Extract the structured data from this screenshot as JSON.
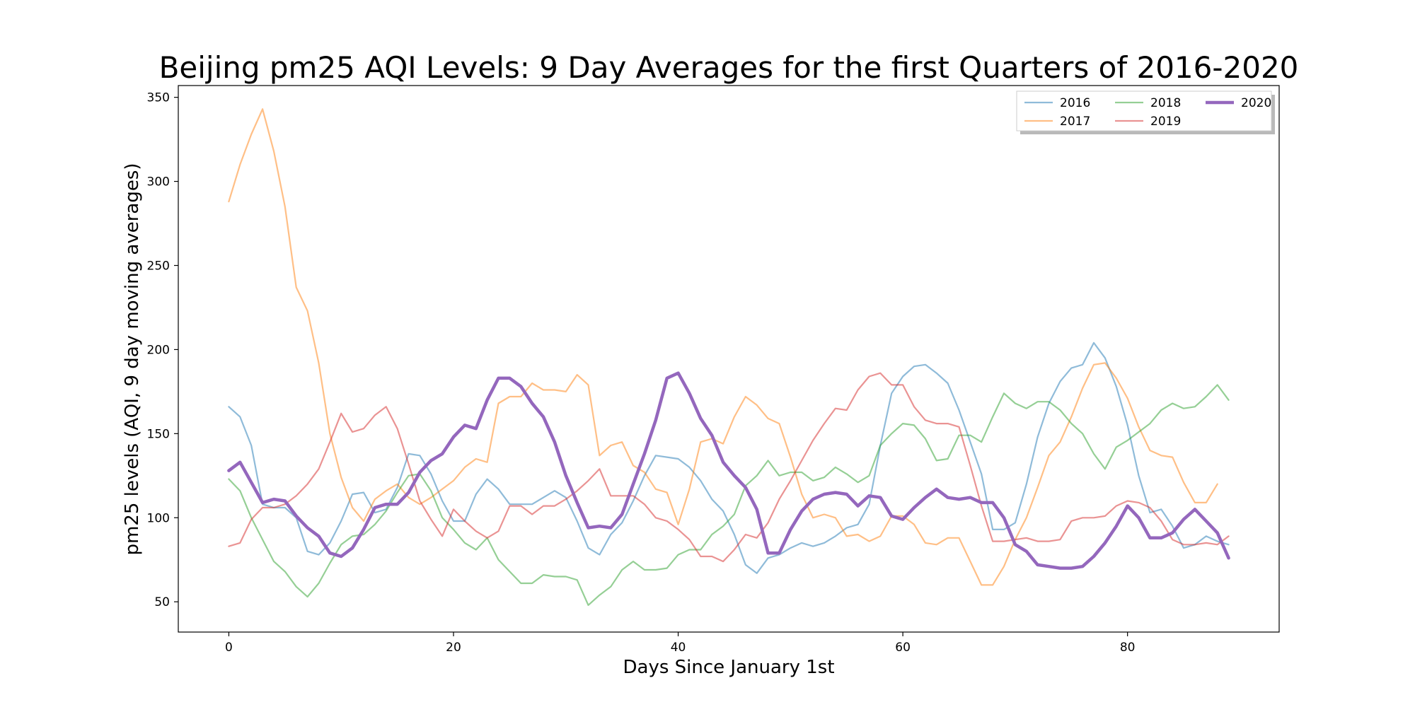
{
  "chart_data": {
    "type": "line",
    "title": "Beijing pm25 AQI Levels: 9 Day Averages for the first Quarters of 2016-2020",
    "xlabel": "Days Since January 1st",
    "ylabel": "pm25 levels (AQI, 9 day moving averages)",
    "xlim": [
      -4.5,
      93.5
    ],
    "ylim": [
      32,
      357
    ],
    "xticks": [
      0,
      20,
      40,
      60,
      80
    ],
    "yticks": [
      50,
      100,
      150,
      200,
      250,
      300,
      350
    ],
    "grid": false,
    "legend": {
      "placement": "top-right",
      "columns": 3
    },
    "series": [
      {
        "name": "2016",
        "color": "#1f77b4",
        "opacity": 0.5,
        "width": "thin",
        "values": [
          166,
          160,
          143,
          108,
          106,
          106,
          100,
          80,
          78,
          85,
          98,
          114,
          115,
          103,
          105,
          118,
          138,
          137,
          126,
          110,
          98,
          98,
          114,
          123,
          117,
          108,
          108,
          108,
          112,
          116,
          112,
          98,
          82,
          78,
          90,
          97,
          110,
          125,
          137,
          136,
          135,
          130,
          122,
          111,
          104,
          90,
          72,
          67,
          76,
          78,
          82,
          85,
          83,
          85,
          89,
          94,
          96,
          108,
          143,
          174,
          184,
          190,
          191,
          186,
          180,
          164,
          145,
          126,
          93,
          93,
          97,
          120,
          148,
          168,
          181,
          189,
          191,
          204,
          195,
          178,
          155,
          125,
          103,
          105,
          95,
          82,
          84,
          89,
          86,
          84
        ]
      },
      {
        "name": "2017",
        "color": "#ff7f0e",
        "opacity": 0.5,
        "width": "thin",
        "values": [
          288,
          310,
          328,
          343,
          318,
          285,
          237,
          223,
          192,
          150,
          124,
          106,
          98,
          111,
          116,
          120,
          112,
          108,
          112,
          117,
          122,
          130,
          135,
          133,
          168,
          172,
          172,
          180,
          176,
          176,
          175,
          185,
          179,
          137,
          143,
          145,
          131,
          127,
          117,
          115,
          96,
          117,
          145,
          147,
          144,
          160,
          172,
          167,
          159,
          156,
          136,
          114,
          100,
          102,
          100,
          89,
          90,
          86,
          89,
          101,
          101,
          96,
          85,
          84,
          88,
          88,
          74,
          60,
          60,
          71,
          87,
          100,
          118,
          137,
          145,
          160,
          177,
          191,
          192,
          183,
          171,
          154,
          140,
          137,
          136,
          121,
          109,
          109,
          120
        ]
      },
      {
        "name": "2018",
        "color": "#2ca02c",
        "opacity": 0.5,
        "width": "thin",
        "values": [
          123,
          116,
          100,
          87,
          74,
          68,
          59,
          53,
          61,
          73,
          84,
          89,
          90,
          96,
          104,
          115,
          125,
          126,
          116,
          100,
          93,
          85,
          81,
          88,
          75,
          68,
          61,
          61,
          66,
          65,
          65,
          63,
          48,
          54,
          59,
          69,
          74,
          69,
          69,
          70,
          78,
          81,
          81,
          90,
          95,
          102,
          119,
          125,
          134,
          125,
          127,
          127,
          122,
          124,
          130,
          126,
          121,
          125,
          143,
          150,
          156,
          155,
          147,
          134,
          135,
          149,
          149,
          145,
          160,
          174,
          168,
          165,
          169,
          169,
          164,
          156,
          150,
          138,
          129,
          142,
          146,
          151,
          156,
          164,
          168,
          165,
          166,
          172,
          179,
          170
        ]
      },
      {
        "name": "2019",
        "color": "#d62728",
        "opacity": 0.5,
        "width": "thin",
        "values": [
          83,
          85,
          99,
          106,
          106,
          108,
          113,
          120,
          129,
          145,
          162,
          151,
          153,
          161,
          166,
          153,
          132,
          110,
          99,
          89,
          105,
          98,
          92,
          88,
          92,
          107,
          107,
          102,
          107,
          107,
          111,
          116,
          122,
          129,
          113,
          113,
          113,
          108,
          100,
          98,
          93,
          87,
          77,
          77,
          74,
          81,
          90,
          88,
          97,
          111,
          122,
          134,
          146,
          156,
          165,
          164,
          176,
          184,
          186,
          179,
          179,
          166,
          158,
          156,
          156,
          154,
          131,
          107,
          86,
          86,
          87,
          88,
          86,
          86,
          87,
          98,
          100,
          100,
          101,
          107,
          110,
          109,
          106,
          98,
          87,
          84,
          84,
          85,
          84,
          89
        ]
      },
      {
        "name": "2020",
        "color": "#9467bd",
        "opacity": 1.0,
        "width": "thick",
        "values": [
          128,
          133,
          121,
          109,
          111,
          110,
          101,
          94,
          89,
          79,
          77,
          82,
          93,
          106,
          108,
          108,
          115,
          127,
          134,
          138,
          148,
          155,
          153,
          170,
          183,
          183,
          178,
          168,
          160,
          145,
          125,
          109,
          94,
          95,
          94,
          102,
          120,
          138,
          158,
          183,
          186,
          174,
          159,
          149,
          133,
          125,
          118,
          105,
          79,
          79,
          93,
          104,
          111,
          114,
          115,
          114,
          107,
          113,
          112,
          101,
          99,
          106,
          112,
          117,
          112,
          111,
          112,
          109,
          109,
          100,
          84,
          80,
          72,
          71,
          70,
          70,
          71,
          77,
          85,
          95,
          107,
          100,
          88,
          88,
          91,
          99,
          105,
          98,
          91,
          76
        ]
      }
    ]
  }
}
